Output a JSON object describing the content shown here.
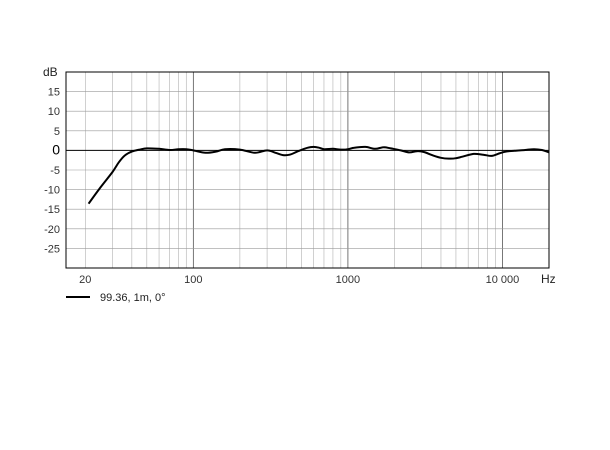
{
  "chart_data": {
    "type": "line",
    "title": "",
    "xlabel": "Hz",
    "ylabel": "dB",
    "x_scale": "log",
    "xlim": [
      15,
      20000
    ],
    "ylim": [
      -30,
      20
    ],
    "grid": true,
    "legend_position": "bottom-left",
    "x_tick_labels": [
      {
        "value": 20,
        "label": "20"
      },
      {
        "value": 100,
        "label": "100"
      },
      {
        "value": 1000,
        "label": "1000"
      },
      {
        "value": 10000,
        "label": "10 000"
      }
    ],
    "y_tick_labels": [
      {
        "value": 15,
        "label": "15"
      },
      {
        "value": 10,
        "label": "10"
      },
      {
        "value": 5,
        "label": "5"
      },
      {
        "value": 0,
        "label": "0"
      },
      {
        "value": -5,
        "label": "-5"
      },
      {
        "value": -10,
        "label": "-10"
      },
      {
        "value": -15,
        "label": "-15"
      },
      {
        "value": -20,
        "label": "-20"
      },
      {
        "value": -25,
        "label": "-25"
      }
    ],
    "series": [
      {
        "name": "99.36, 1m, 0°",
        "color": "#000000",
        "points": [
          [
            21,
            -13.6
          ],
          [
            25,
            -9.5
          ],
          [
            30,
            -5.5
          ],
          [
            33,
            -3
          ],
          [
            36,
            -1.3
          ],
          [
            40,
            -0.3
          ],
          [
            45,
            0.2
          ],
          [
            50,
            0.5
          ],
          [
            60,
            0.4
          ],
          [
            70,
            0.1
          ],
          [
            80,
            0.3
          ],
          [
            90,
            0.3
          ],
          [
            100,
            0
          ],
          [
            120,
            -0.6
          ],
          [
            140,
            -0.3
          ],
          [
            160,
            0.3
          ],
          [
            200,
            0.2
          ],
          [
            250,
            -0.6
          ],
          [
            300,
            0
          ],
          [
            340,
            -0.6
          ],
          [
            380,
            -1.2
          ],
          [
            420,
            -1.1
          ],
          [
            470,
            -0.3
          ],
          [
            550,
            0.7
          ],
          [
            600,
            0.9
          ],
          [
            650,
            0.7
          ],
          [
            700,
            0.3
          ],
          [
            800,
            0.4
          ],
          [
            900,
            0.2
          ],
          [
            1000,
            0.3
          ],
          [
            1100,
            0.7
          ],
          [
            1300,
            0.9
          ],
          [
            1500,
            0.4
          ],
          [
            1700,
            0.8
          ],
          [
            1900,
            0.5
          ],
          [
            2200,
            0
          ],
          [
            2500,
            -0.5
          ],
          [
            2800,
            -0.2
          ],
          [
            3100,
            -0.4
          ],
          [
            3500,
            -1.2
          ],
          [
            4000,
            -1.9
          ],
          [
            4500,
            -2.1
          ],
          [
            5000,
            -2.0
          ],
          [
            5500,
            -1.6
          ],
          [
            6500,
            -0.9
          ],
          [
            7500,
            -1.1
          ],
          [
            8500,
            -1.4
          ],
          [
            9500,
            -0.8
          ],
          [
            10500,
            -0.3
          ],
          [
            12000,
            -0.1
          ],
          [
            14000,
            0.1
          ],
          [
            16000,
            0.3
          ],
          [
            18000,
            0.1
          ],
          [
            20000,
            -0.5
          ]
        ]
      }
    ]
  }
}
